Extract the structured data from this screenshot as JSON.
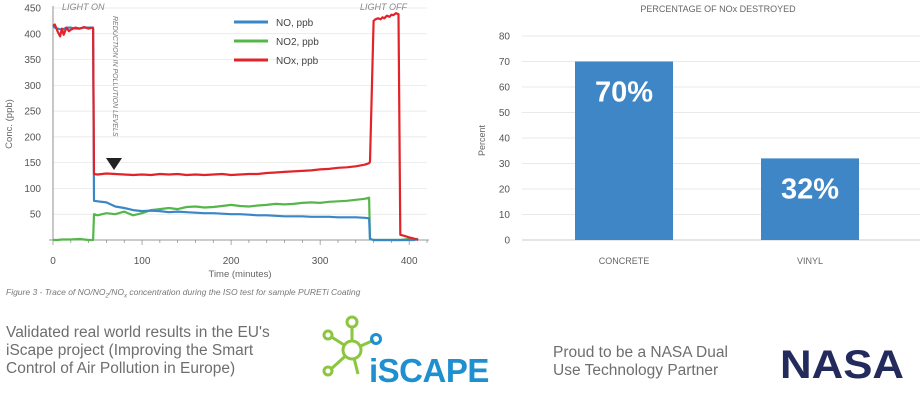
{
  "line_chart": {
    "annotation_light_on": "LIGHT ON",
    "annotation_light_off": "LIGHT OFF",
    "annotation_reduction": "REDUCTION IN POLLUTION LEVELS",
    "caption_prefix": "Figure 3 - Trace of NO/NO",
    "caption_sub1": "2",
    "caption_mid": "/NO",
    "caption_sub2": "x",
    "caption_suffix": " concentration during the ISO test for sample PURETi Coating"
  },
  "bar_chart": {
    "value_labels": [
      "70%",
      "32%"
    ]
  },
  "footer": {
    "validated_text": "Validated real world results in the EU's iScape project (Improving the Smart Control of Air Pollution in Europe)",
    "iscape_logo_text": "iSCAPE",
    "proud_text": "Proud to be a NASA Dual Use Technology Partner",
    "nasa_logo_text": "NASA"
  },
  "colors": {
    "no": "#3a87c8",
    "no2": "#55b74a",
    "nox": "#e2232a",
    "bar": "#3e86c6",
    "iscape_green": "#8cc63f",
    "iscape_blue": "#1e8fcf",
    "nasa": "#232a5c"
  },
  "chart_data": [
    {
      "type": "line",
      "xlabel": "Time (minutes)",
      "ylabel": "Conc. (ppb)",
      "xlim": [
        0,
        420
      ],
      "ylim": [
        0,
        450
      ],
      "xticks": [
        0,
        100,
        200,
        300,
        400
      ],
      "yticks": [
        50,
        100,
        150,
        200,
        250,
        300,
        350,
        400,
        450
      ],
      "legend_position": "top-center",
      "series": [
        {
          "name": "NO, ppb",
          "color": "#3a87c8",
          "x": [
            0,
            2,
            5,
            10,
            15,
            20,
            25,
            30,
            35,
            40,
            45,
            46,
            50,
            60,
            70,
            80,
            90,
            100,
            110,
            120,
            130,
            140,
            150,
            160,
            170,
            180,
            190,
            200,
            210,
            220,
            230,
            240,
            250,
            260,
            270,
            280,
            290,
            300,
            310,
            320,
            330,
            340,
            350,
            355,
            356,
            360,
            365,
            370,
            375,
            380,
            385,
            390,
            395,
            400,
            405,
            410
          ],
          "y": [
            415,
            412,
            410,
            408,
            412,
            412,
            410,
            410,
            412,
            412,
            412,
            76,
            75,
            73,
            65,
            62,
            58,
            56,
            57,
            56,
            54,
            55,
            54,
            53,
            52,
            52,
            51,
            50,
            50,
            49,
            48,
            48,
            47,
            46,
            46,
            46,
            45,
            45,
            45,
            44,
            44,
            44,
            43,
            42,
            2,
            0,
            0,
            0,
            0,
            0,
            0,
            0,
            0,
            0,
            0,
            2
          ]
        },
        {
          "name": "NO2, ppb",
          "color": "#55b74a",
          "x": [
            0,
            5,
            10,
            20,
            30,
            40,
            45,
            46,
            50,
            60,
            70,
            80,
            90,
            100,
            110,
            120,
            130,
            140,
            150,
            160,
            170,
            180,
            190,
            200,
            210,
            220,
            230,
            240,
            250,
            260,
            270,
            280,
            290,
            300,
            310,
            320,
            330,
            340,
            350,
            355,
            356,
            360,
            370,
            380,
            390,
            395,
            400,
            410
          ],
          "y": [
            0,
            0,
            1,
            1,
            2,
            0,
            0,
            50,
            48,
            52,
            50,
            55,
            48,
            52,
            58,
            60,
            62,
            60,
            64,
            65,
            63,
            64,
            66,
            68,
            66,
            65,
            67,
            68,
            70,
            69,
            70,
            72,
            73,
            72,
            74,
            75,
            76,
            78,
            80,
            82,
            2,
            0,
            0,
            0,
            0,
            1,
            2,
            2
          ]
        },
        {
          "name": "NOx, ppb",
          "color": "#e2232a",
          "x": [
            0,
            2,
            5,
            8,
            10,
            12,
            15,
            18,
            20,
            25,
            30,
            35,
            40,
            44,
            45,
            46,
            50,
            60,
            70,
            80,
            90,
            100,
            110,
            120,
            130,
            140,
            150,
            160,
            170,
            180,
            190,
            200,
            210,
            220,
            230,
            240,
            250,
            260,
            270,
            280,
            290,
            300,
            310,
            320,
            330,
            340,
            350,
            355,
            356,
            360,
            362,
            365,
            368,
            370,
            372,
            375,
            378,
            380,
            382,
            385,
            388,
            390,
            395,
            400,
            405,
            410
          ],
          "y": [
            415,
            418,
            405,
            395,
            410,
            398,
            412,
            405,
            408,
            412,
            410,
            413,
            410,
            412,
            410,
            128,
            127,
            129,
            128,
            127,
            126,
            127,
            126,
            128,
            127,
            128,
            126,
            127,
            126,
            127,
            128,
            126,
            127,
            128,
            128,
            130,
            131,
            132,
            133,
            134,
            135,
            137,
            138,
            140,
            141,
            143,
            146,
            149,
            152,
            425,
            428,
            430,
            428,
            432,
            430,
            435,
            433,
            437,
            436,
            440,
            438,
            10,
            8,
            5,
            3,
            0
          ]
        }
      ]
    },
    {
      "type": "bar",
      "title": "PERCENTAGE OF NOx DESTROYED",
      "ylabel": "Percent",
      "xlabel": "",
      "ylim": [
        0,
        80
      ],
      "yticks": [
        0,
        10,
        20,
        30,
        40,
        50,
        60,
        70,
        80
      ],
      "categories": [
        "CONCRETE",
        "VINYL"
      ],
      "values": [
        70,
        32
      ],
      "grid": true
    }
  ]
}
